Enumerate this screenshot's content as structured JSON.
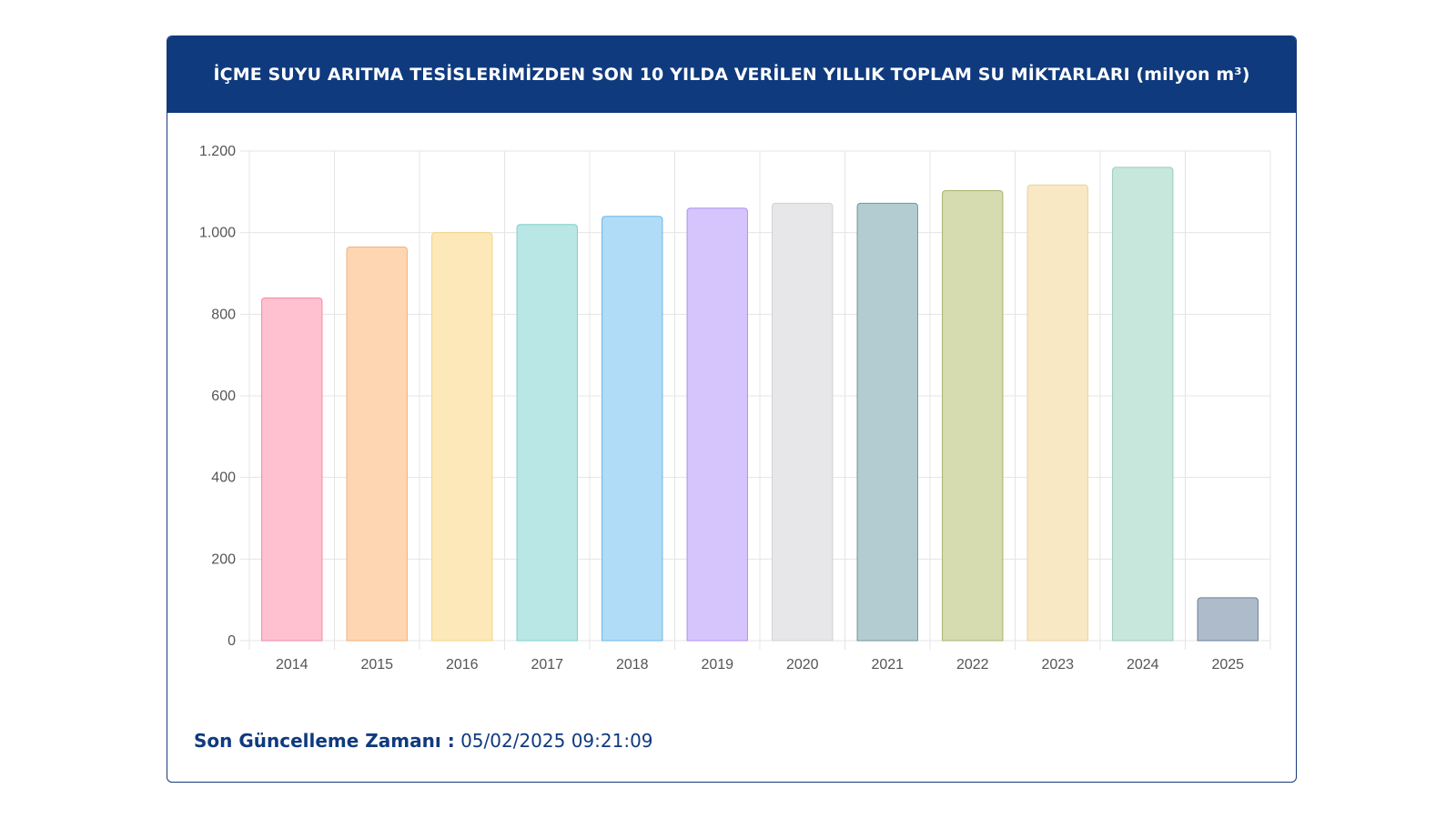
{
  "header": {
    "title": "İÇME SUYU ARITMA TESİSLERİMİZDEN SON 10 YILDA VERİLEN YILLIK TOPLAM SU MİKTARLARI (milyon m³)"
  },
  "footer": {
    "label": "Son Güncelleme Zamanı :",
    "value": "05/02/2025 09:21:09"
  },
  "chart_data": {
    "type": "bar",
    "title": "İÇME SUYU ARITMA TESİSLERİMİZDEN SON 10 YILDA VERİLEN YILLIK TOPLAM SU MİKTARLARI (milyon m³)",
    "xlabel": "",
    "ylabel": "",
    "ylim": [
      0,
      1200
    ],
    "yticks": [
      0,
      200,
      400,
      600,
      800,
      1000,
      1200
    ],
    "ytick_labels": [
      "0",
      "200",
      "400",
      "600",
      "800",
      "1.000",
      "1.200"
    ],
    "grid": true,
    "categories": [
      "2014",
      "2015",
      "2016",
      "2017",
      "2018",
      "2019",
      "2020",
      "2021",
      "2022",
      "2023",
      "2024",
      "2025"
    ],
    "values": [
      840,
      965,
      1000,
      1020,
      1040,
      1060,
      1072,
      1072,
      1103,
      1117,
      1160,
      105
    ],
    "fill_colors": [
      "#ffc1d0",
      "#fed6b2",
      "#fde8b9",
      "#b9e7e6",
      "#b0dcf7",
      "#d6c4fc",
      "#e7e7ea",
      "#b3ccd1",
      "#d6dbb0",
      "#f8e8c4",
      "#c7e7dd",
      "#aebbcb"
    ],
    "border_colors": [
      "#f28aa5",
      "#f4b07a",
      "#f3d386",
      "#7ccfcb",
      "#6fb6e8",
      "#b190f2",
      "#d0d0d6",
      "#6f959c",
      "#a9b270",
      "#ead39a",
      "#9ccbbd",
      "#6d7f98"
    ]
  }
}
